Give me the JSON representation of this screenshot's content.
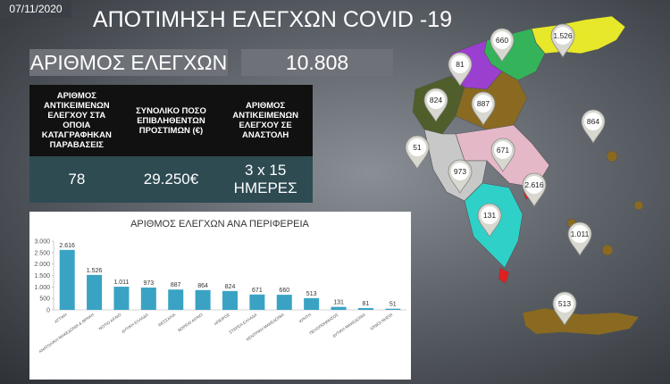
{
  "date": "07/11/2020",
  "title": "ΑΠΟΤΙΜΗΣΗ ΕΛΕΓΧΩΝ COVID -19",
  "checks": {
    "label": "ΑΡΙΘΜΟΣ ΕΛΕΓΧΩΝ",
    "value": "10.808"
  },
  "table": {
    "headers": [
      "ΑΡΙΘΜΟΣ ΑΝΤΙΚΕΙΜΕΝΩΝ ΕΛΕΓΧΟΥ ΣΤΑ ΟΠΟΙΑ ΚΑΤΑΓΡΑΦΗΚΑΝ ΠΑΡΑΒΑΣΕΙΣ",
      "ΣΥΝΟΛΙΚΟ ΠΟΣΟ ΕΠΙΒΛΗΘΕΝΤΩΝ ΠΡΟΣΤΙΜΩΝ (€)",
      "ΑΡΙΘΜΟΣ ΑΝΤΙΚΕΙΜΕΝΩΝ ΕΛΕΓΧΟΥ ΣΕ ΑΝΑΣΤΟΛΗ"
    ],
    "rows": [
      [
        "78",
        "29.250€",
        "3 x 15 ΗΜΕΡΕΣ"
      ]
    ]
  },
  "chart_data": {
    "type": "bar",
    "title": "ΑΡΙΘΜΟΣ ΕΛΕΓΧΩΝ ΑΝΑ ΠΕΡΙΦΕΡΕΙΑ",
    "categories": [
      "ΑΤΤΙΚΗ",
      "ΑΝΑΤΟΛΙΚΗ ΜΑΚΕΔΟΝΙΑ & ΘΡΑΚΗ",
      "ΝΟΤΙΟ ΑΙΓΑΙΟ",
      "ΔΥΤΙΚΗ ΕΛΛΑΔΑ",
      "ΘΕΣΣΑΛΙΑ",
      "ΒΟΡΕΙΟ ΑΙΓΑΙΟ",
      "ΗΠΕΙΡΟΣ",
      "ΣΤΕΡΕΑ ΕΛΛΑΔΑ",
      "ΚΕΝΤΡΙΚΗ ΜΑΚΕΔΟΝΙΑ",
      "ΚΡΗΤΗ",
      "ΠΕΛΟΠΟΝΝΗΣΟΣ",
      "ΔΥΤΙΚΗ ΜΑΚΕΔΟΝΙΑ",
      "ΙΟΝΙΟΙ ΝΗΣΟΙ"
    ],
    "values": [
      2616,
      1526,
      1011,
      973,
      887,
      864,
      824,
      671,
      660,
      513,
      131,
      81,
      51
    ],
    "value_labels": [
      "2.616",
      "1.526",
      "1.011",
      "973",
      "887",
      "864",
      "824",
      "671",
      "660",
      "513",
      "131",
      "81",
      "51"
    ],
    "color": "#3aa3c4",
    "ylim": [
      0,
      3000
    ],
    "yticks": [
      0,
      500,
      {
        "value": 1000,
        "label": "1.000"
      },
      {
        "value": 1500,
        "label": "1.500"
      },
      {
        "value": 2000,
        "label": "2.000"
      },
      {
        "value": 2500,
        "label": "2.500"
      },
      {
        "value": 3000,
        "label": "3.000"
      }
    ]
  }
}
